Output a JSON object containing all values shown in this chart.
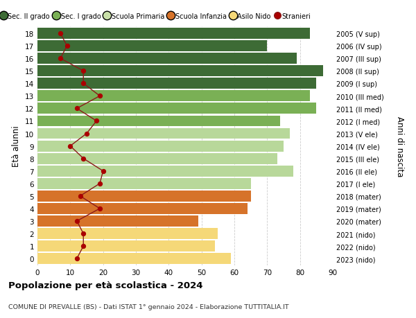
{
  "ages": [
    18,
    17,
    16,
    15,
    14,
    13,
    12,
    11,
    10,
    9,
    8,
    7,
    6,
    5,
    4,
    3,
    2,
    1,
    0
  ],
  "bar_values": [
    83,
    70,
    79,
    87,
    85,
    83,
    85,
    74,
    77,
    75,
    73,
    78,
    65,
    65,
    64,
    49,
    55,
    54,
    59
  ],
  "stranieri": [
    7,
    9,
    7,
    14,
    14,
    19,
    12,
    18,
    15,
    10,
    14,
    20,
    19,
    13,
    19,
    12,
    14,
    14,
    12
  ],
  "right_labels": [
    "2005 (V sup)",
    "2006 (IV sup)",
    "2007 (III sup)",
    "2008 (II sup)",
    "2009 (I sup)",
    "2010 (III med)",
    "2011 (II med)",
    "2012 (I med)",
    "2013 (V ele)",
    "2014 (IV ele)",
    "2015 (III ele)",
    "2016 (II ele)",
    "2017 (I ele)",
    "2018 (mater)",
    "2019 (mater)",
    "2020 (mater)",
    "2021 (nido)",
    "2022 (nido)",
    "2023 (nido)"
  ],
  "bar_colors": [
    "#3d6b35",
    "#3d6b35",
    "#3d6b35",
    "#3d6b35",
    "#3d6b35",
    "#7ab055",
    "#7ab055",
    "#7ab055",
    "#b8d89a",
    "#b8d89a",
    "#b8d89a",
    "#b8d89a",
    "#b8d89a",
    "#d6732a",
    "#d6732a",
    "#d6732a",
    "#f5d878",
    "#f5d878",
    "#f5d878"
  ],
  "legend_labels": [
    "Sec. II grado",
    "Sec. I grado",
    "Scuola Primaria",
    "Scuola Infanzia",
    "Asilo Nido",
    "Stranieri"
  ],
  "legend_colors": [
    "#3d6b35",
    "#7ab055",
    "#c8dfa8",
    "#d6732a",
    "#f5d878",
    "#aa0000"
  ],
  "stranieri_line_color": "#8b1a1a",
  "stranieri_marker_color": "#aa0000",
  "ylabel_left": "Età alunni",
  "ylabel_right": "Anni di nascita",
  "title": "Popolazione per età scolastica - 2024",
  "subtitle": "COMUNE DI PREVALLE (BS) - Dati ISTAT 1° gennaio 2024 - Elaborazione TUTTITALIA.IT",
  "xlim": [
    0,
    90
  ],
  "xticks": [
    0,
    10,
    20,
    30,
    40,
    50,
    60,
    70,
    80,
    90
  ],
  "bg_color": "#ffffff",
  "grid_color": "#cccccc",
  "bar_height": 0.88
}
